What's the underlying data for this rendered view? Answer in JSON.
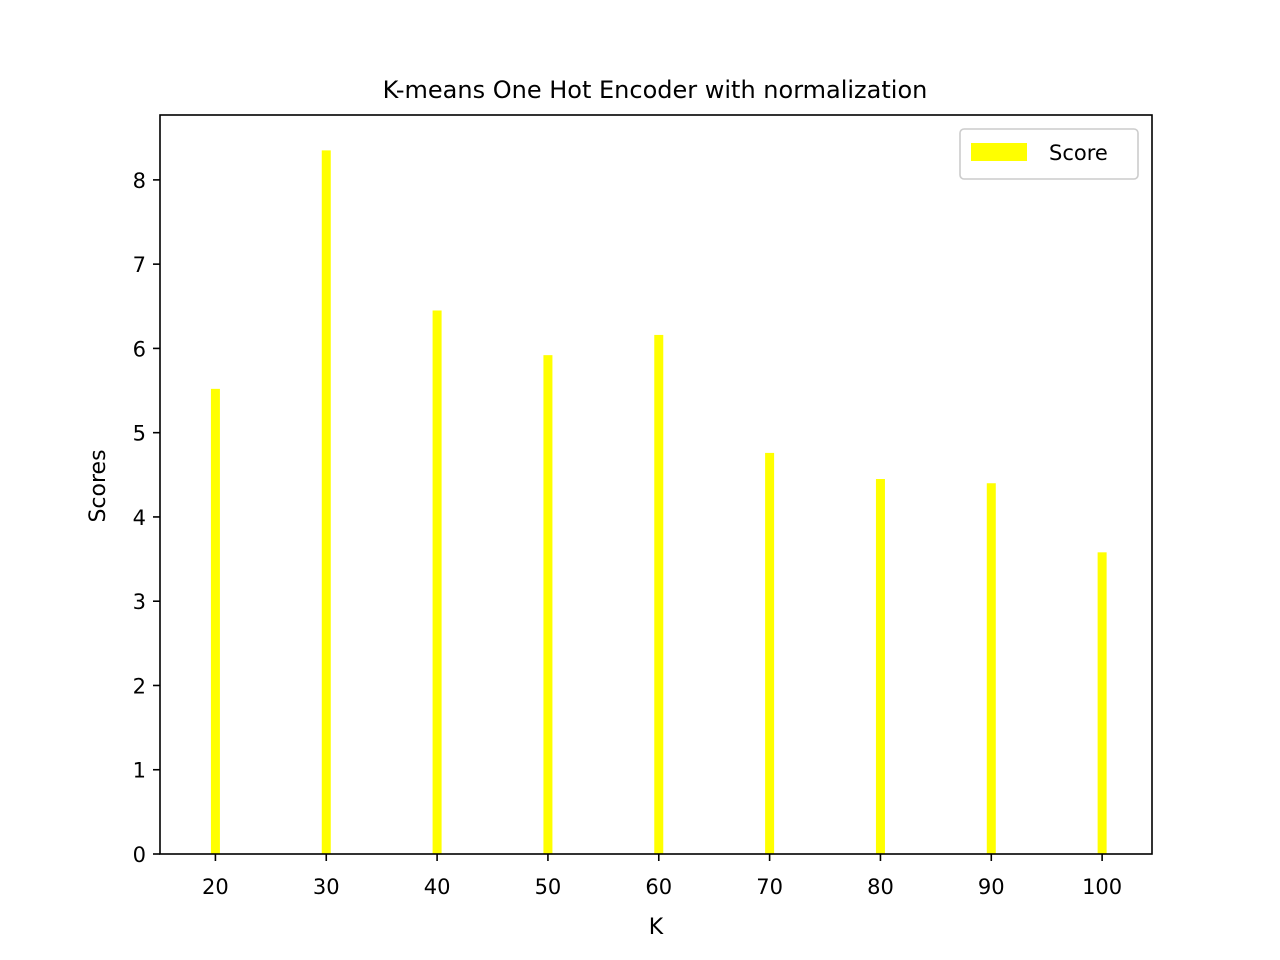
{
  "chart_data": {
    "type": "bar",
    "title": "K-means One Hot Encoder with normalization",
    "xlabel": "K",
    "ylabel": "Scores",
    "categories": [
      "20",
      "30",
      "40",
      "50",
      "60",
      "70",
      "80",
      "90",
      "100"
    ],
    "x": [
      20,
      30,
      40,
      50,
      60,
      70,
      80,
      90,
      100
    ],
    "series": [
      {
        "name": "Score",
        "color": "#ffff00",
        "values": [
          5.52,
          8.35,
          6.45,
          5.92,
          6.16,
          4.76,
          4.45,
          4.4,
          3.58
        ]
      }
    ],
    "xlim": [
      15,
      104.5
    ],
    "ylim": [
      0,
      8.77
    ],
    "yticks": [
      0,
      1,
      2,
      3,
      4,
      5,
      6,
      7,
      8
    ],
    "xticks": [
      20,
      30,
      40,
      50,
      60,
      70,
      80,
      90,
      100
    ],
    "grid": false,
    "legend_position": "top-right"
  }
}
